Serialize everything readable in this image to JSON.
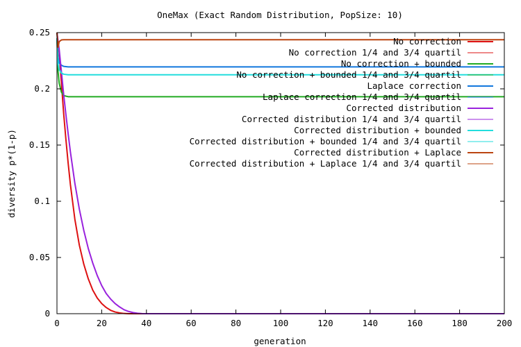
{
  "chart_data": {
    "type": "line",
    "title": "OneMax (Exact Random Distribution, PopSize: 10)",
    "xlabel": "generation",
    "ylabel": "diversity p*(1-p)",
    "xlim": [
      0,
      200
    ],
    "ylim": [
      0,
      0.25
    ],
    "xticks": [
      0,
      20,
      40,
      60,
      80,
      100,
      120,
      140,
      160,
      180,
      200
    ],
    "yticks": [
      0,
      0.05,
      0.1,
      0.15,
      0.2,
      0.25
    ],
    "legend_position": "top-right",
    "grid": false,
    "series": [
      {
        "name": "No correction",
        "color": "#dd1111",
        "style": "thick",
        "x": [
          0,
          1,
          2,
          3,
          4,
          5,
          6,
          8,
          10,
          12,
          14,
          16,
          18,
          20,
          22,
          24,
          26,
          28,
          30,
          32,
          36,
          40,
          200
        ],
        "y": [
          0.25,
          0.232,
          0.205,
          0.178,
          0.155,
          0.134,
          0.115,
          0.084,
          0.061,
          0.044,
          0.031,
          0.021,
          0.014,
          0.009,
          0.0055,
          0.003,
          0.0015,
          0.0007,
          0.0002,
          0,
          0,
          0,
          0
        ]
      },
      {
        "name": "No correction 1/4 and 3/4 quartil",
        "color": "#dd1111",
        "style": "thin",
        "x": [
          0,
          1,
          2,
          3,
          4,
          5,
          6,
          8,
          10,
          12,
          14,
          16,
          18,
          20,
          22,
          24,
          26,
          28,
          30,
          32,
          36,
          40,
          200
        ],
        "y": [
          0.25,
          0.232,
          0.205,
          0.178,
          0.155,
          0.134,
          0.115,
          0.084,
          0.061,
          0.044,
          0.031,
          0.021,
          0.014,
          0.009,
          0.0055,
          0.003,
          0.0015,
          0.0007,
          0.0002,
          0,
          0,
          0,
          0
        ]
      },
      {
        "name": "No correction + bounded",
        "color": "#22aa22",
        "style": "thick",
        "x": [
          0,
          0.5,
          1,
          2,
          3,
          5,
          200
        ],
        "y": [
          0.245,
          0.215,
          0.205,
          0.197,
          0.194,
          0.193,
          0.193
        ]
      },
      {
        "name": "No correction + bounded 1/4 and 3/4 quartil",
        "color": "#22aa22",
        "style": "thin",
        "x": [
          0,
          0.5,
          1,
          2,
          3,
          5,
          200
        ],
        "y": [
          0.245,
          0.215,
          0.205,
          0.197,
          0.194,
          0.193,
          0.193
        ]
      },
      {
        "name": "Laplace correction",
        "color": "#1177dd",
        "style": "thick",
        "x": [
          0,
          0.5,
          1,
          2,
          3,
          5,
          200
        ],
        "y": [
          0.245,
          0.228,
          0.223,
          0.221,
          0.22,
          0.2195,
          0.2195
        ]
      },
      {
        "name": "Laplace correction 1/4 and 3/4 quartil",
        "color": "#1177dd",
        "style": "thin",
        "x": [
          0,
          0.5,
          1,
          2,
          3,
          5,
          200
        ],
        "y": [
          0.245,
          0.228,
          0.223,
          0.221,
          0.22,
          0.2195,
          0.2195
        ]
      },
      {
        "name": "Corrected distribution",
        "color": "#9922dd",
        "style": "thick",
        "x": [
          0,
          1,
          2,
          3,
          4,
          5,
          6,
          8,
          10,
          12,
          14,
          16,
          18,
          20,
          22,
          24,
          26,
          28,
          30,
          32,
          34,
          36,
          38,
          40,
          200
        ],
        "y": [
          0.25,
          0.235,
          0.215,
          0.195,
          0.177,
          0.16,
          0.144,
          0.116,
          0.093,
          0.074,
          0.058,
          0.045,
          0.034,
          0.025,
          0.018,
          0.013,
          0.009,
          0.006,
          0.0035,
          0.002,
          0.001,
          0.0004,
          0.0001,
          0,
          0
        ]
      },
      {
        "name": "Corrected distribution 1/4 and 3/4 quartil",
        "color": "#9922dd",
        "style": "thin",
        "x": [
          0,
          1,
          2,
          3,
          4,
          5,
          6,
          8,
          10,
          12,
          14,
          16,
          18,
          20,
          22,
          24,
          26,
          28,
          30,
          32,
          34,
          36,
          38,
          40,
          200
        ],
        "y": [
          0.25,
          0.235,
          0.215,
          0.195,
          0.177,
          0.16,
          0.144,
          0.116,
          0.093,
          0.074,
          0.058,
          0.045,
          0.034,
          0.025,
          0.018,
          0.013,
          0.009,
          0.006,
          0.0035,
          0.002,
          0.001,
          0.0004,
          0.0001,
          0,
          0
        ]
      },
      {
        "name": "Corrected distribution + bounded",
        "color": "#22dddd",
        "style": "thick",
        "x": [
          0,
          0.5,
          1,
          2,
          3,
          5,
          200
        ],
        "y": [
          0.245,
          0.222,
          0.217,
          0.214,
          0.213,
          0.2125,
          0.2125
        ]
      },
      {
        "name": "Corrected distribution + bounded 1/4 and 3/4 quartil",
        "color": "#22dddd",
        "style": "thin",
        "x": [
          0,
          0.5,
          1,
          2,
          3,
          5,
          200
        ],
        "y": [
          0.245,
          0.222,
          0.217,
          0.214,
          0.213,
          0.2125,
          0.2125
        ]
      },
      {
        "name": "Corrected distribution + Laplace",
        "color": "#bb4411",
        "style": "thick",
        "x": [
          0,
          0.5,
          1,
          2,
          3,
          5,
          200
        ],
        "y": [
          0.25,
          0.237,
          0.242,
          0.2435,
          0.2437,
          0.2437,
          0.2437
        ]
      },
      {
        "name": "Corrected distribution + Laplace 1/4 and 3/4 quartil",
        "color": "#bb4411",
        "style": "thin",
        "x": [
          0,
          0.5,
          1,
          2,
          3,
          5,
          200
        ],
        "y": [
          0.25,
          0.237,
          0.242,
          0.2435,
          0.2437,
          0.2437,
          0.2437
        ]
      }
    ]
  }
}
